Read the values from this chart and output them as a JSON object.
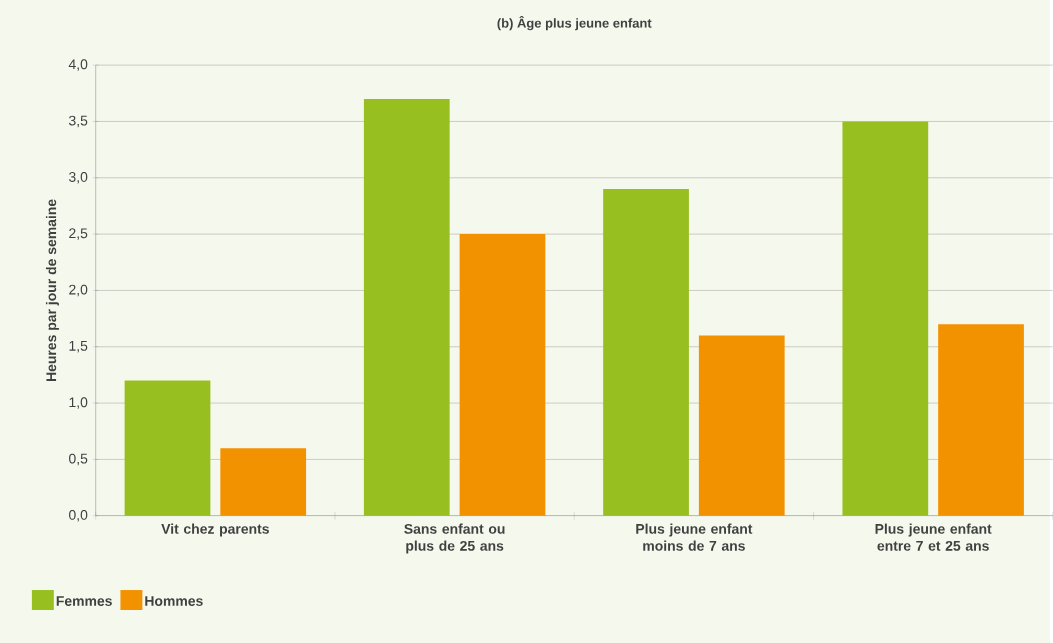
{
  "chart_data": {
    "type": "bar",
    "title": "(b) Âge plus jeune enfant",
    "ylabel": "Heures par jour de semaine",
    "categories": [
      "Vit chez parents",
      "Sans enfant ou plus de 25 ans",
      "Plus jeune enfant moins de 7 ans",
      "Plus jeune enfant entre 7 et 25 ans"
    ],
    "series": [
      {
        "name": "Femmes",
        "color": "#97bf1f",
        "values": [
          1.2,
          3.7,
          2.9,
          3.5
        ]
      },
      {
        "name": "Hommes",
        "color": "#f39200",
        "values": [
          0.6,
          2.5,
          1.6,
          1.7
        ]
      }
    ],
    "ylim": [
      0,
      4
    ],
    "yticks": [
      {
        "value": 0,
        "label": "0,0"
      },
      {
        "value": 0.5,
        "label": "0,5"
      },
      {
        "value": 1,
        "label": "1,0"
      },
      {
        "value": 1.5,
        "label": "1,5"
      },
      {
        "value": 2,
        "label": "2,0"
      },
      {
        "value": 2.5,
        "label": "2,5"
      },
      {
        "value": 3,
        "label": "3,0"
      },
      {
        "value": 3.5,
        "label": "3,5"
      },
      {
        "value": 4,
        "label": "4,0"
      }
    ],
    "grid": "y",
    "legend": "bottom left"
  }
}
